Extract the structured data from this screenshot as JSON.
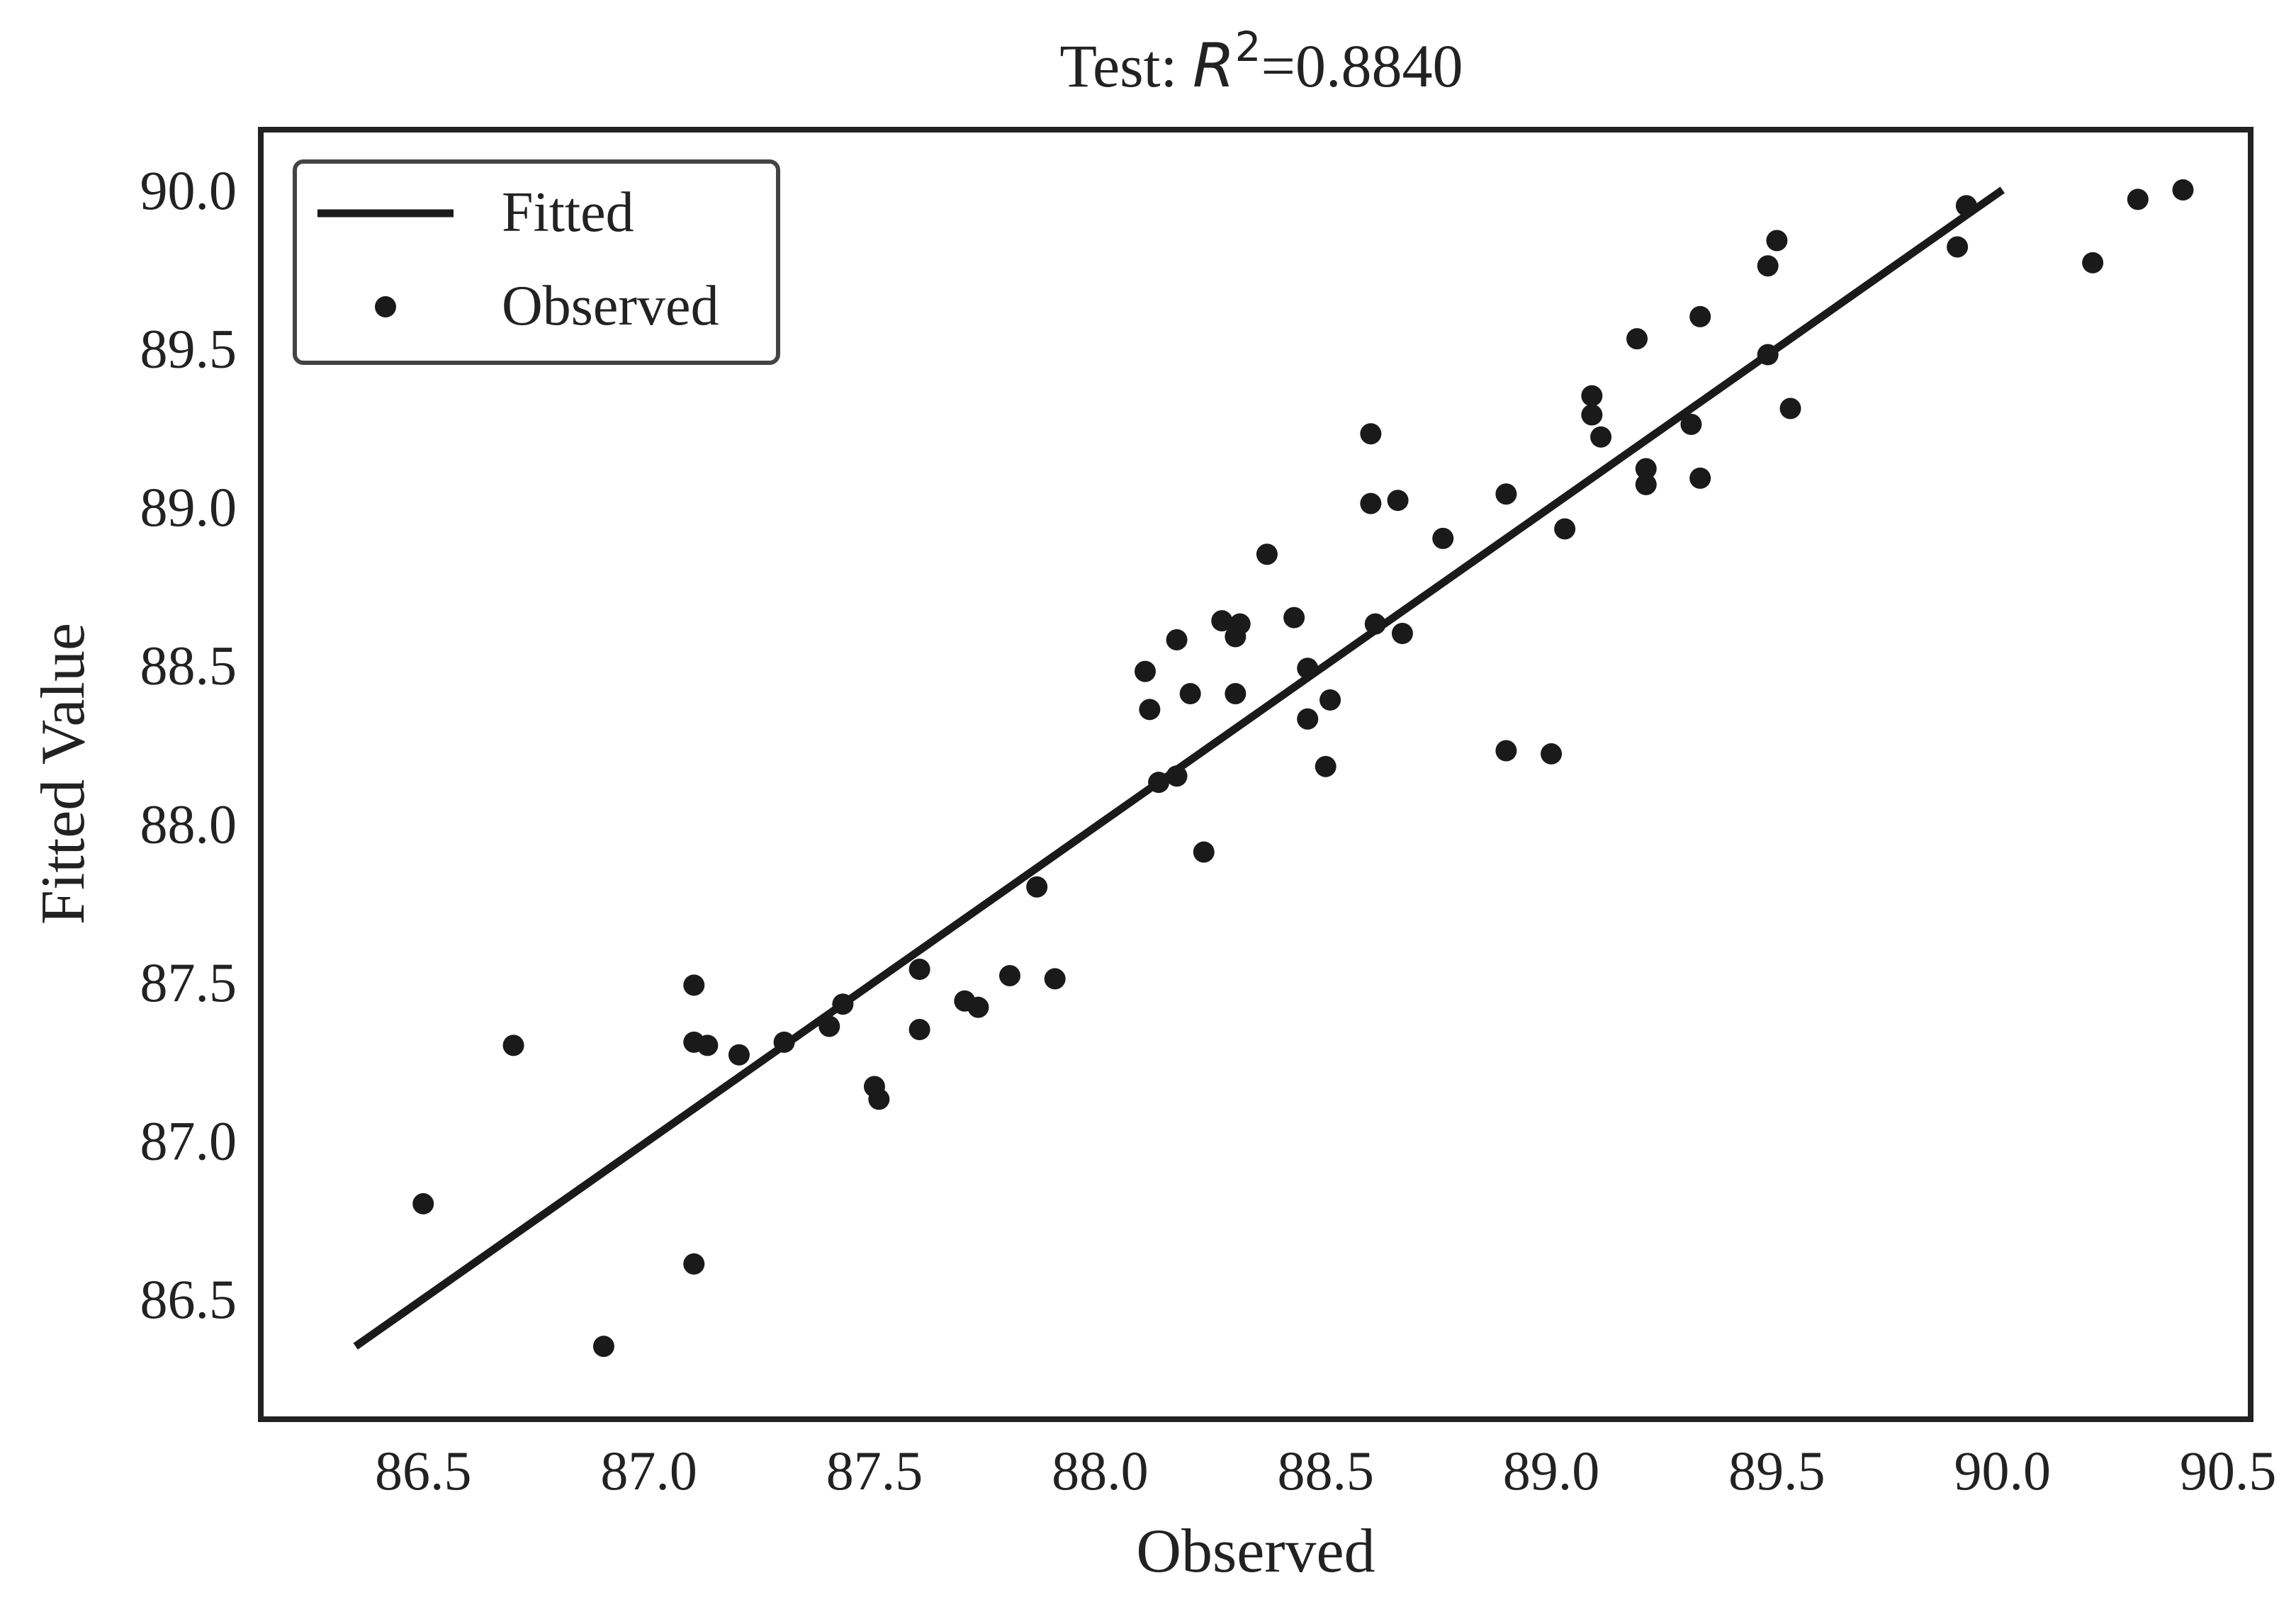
{
  "chart_data": {
    "type": "scatter",
    "title_prefix": "Test:  ",
    "title_symbol": "R",
    "title_exponent": "2",
    "title_value": "=0.8840",
    "xlabel": "Observed",
    "ylabel": "Fitted Value",
    "xlim": [
      86.14,
      90.55
    ],
    "ylim": [
      86.12,
      90.19
    ],
    "x_ticks": [
      "86.5",
      "87.0",
      "87.5",
      "88.0",
      "88.5",
      "89.0",
      "89.5",
      "90.0",
      "90.5"
    ],
    "y_ticks": [
      "86.5",
      "87.0",
      "87.5",
      "88.0",
      "88.5",
      "89.0",
      "89.5",
      "90.0"
    ],
    "grid": false,
    "legend_position": "top-left",
    "colors": {
      "marks": "#1a1a1a",
      "axes": "#222222",
      "legend_border": "#444444"
    },
    "series": [
      {
        "name": "Fitted",
        "type": "line",
        "x": [
          86.35,
          90.0
        ],
        "y": [
          86.35,
          90.0
        ]
      },
      {
        "name": "Observed",
        "type": "scatter",
        "points": [
          [
            86.5,
            86.8
          ],
          [
            86.7,
            87.3
          ],
          [
            86.9,
            86.35
          ],
          [
            87.1,
            87.49
          ],
          [
            87.1,
            87.31
          ],
          [
            87.1,
            86.61
          ],
          [
            87.13,
            87.3
          ],
          [
            87.2,
            87.27
          ],
          [
            87.3,
            87.31
          ],
          [
            87.4,
            87.36
          ],
          [
            87.43,
            87.43
          ],
          [
            87.5,
            87.17
          ],
          [
            87.51,
            87.13
          ],
          [
            87.6,
            87.54
          ],
          [
            87.6,
            87.35
          ],
          [
            87.7,
            87.44
          ],
          [
            87.73,
            87.42
          ],
          [
            87.8,
            87.52
          ],
          [
            87.86,
            87.8
          ],
          [
            87.9,
            87.51
          ],
          [
            88.1,
            88.48
          ],
          [
            88.11,
            88.36
          ],
          [
            88.13,
            88.13
          ],
          [
            88.17,
            88.58
          ],
          [
            88.17,
            88.15
          ],
          [
            88.2,
            88.41
          ],
          [
            88.23,
            87.91
          ],
          [
            88.27,
            88.64
          ],
          [
            88.3,
            88.59
          ],
          [
            88.31,
            88.63
          ],
          [
            88.3,
            88.41
          ],
          [
            88.37,
            88.85
          ],
          [
            88.43,
            88.65
          ],
          [
            88.46,
            88.49
          ],
          [
            88.46,
            88.33
          ],
          [
            88.5,
            88.18
          ],
          [
            88.51,
            88.39
          ],
          [
            88.6,
            89.23
          ],
          [
            88.6,
            89.01
          ],
          [
            88.61,
            88.63
          ],
          [
            88.66,
            89.02
          ],
          [
            88.67,
            88.6
          ],
          [
            88.76,
            88.9
          ],
          [
            88.9,
            89.04
          ],
          [
            88.9,
            88.23
          ],
          [
            89.0,
            88.22
          ],
          [
            89.03,
            88.93
          ],
          [
            89.09,
            89.35
          ],
          [
            89.09,
            89.29
          ],
          [
            89.11,
            89.22
          ],
          [
            89.19,
            89.53
          ],
          [
            89.21,
            89.12
          ],
          [
            89.21,
            89.07
          ],
          [
            89.31,
            89.26
          ],
          [
            89.33,
            89.6
          ],
          [
            89.33,
            89.09
          ],
          [
            89.48,
            89.48
          ],
          [
            89.48,
            89.76
          ],
          [
            89.5,
            89.84
          ],
          [
            89.53,
            89.31
          ],
          [
            89.9,
            89.82
          ],
          [
            89.92,
            89.95
          ],
          [
            90.2,
            89.77
          ],
          [
            90.3,
            89.97
          ],
          [
            90.4,
            90.0
          ]
        ]
      }
    ]
  }
}
